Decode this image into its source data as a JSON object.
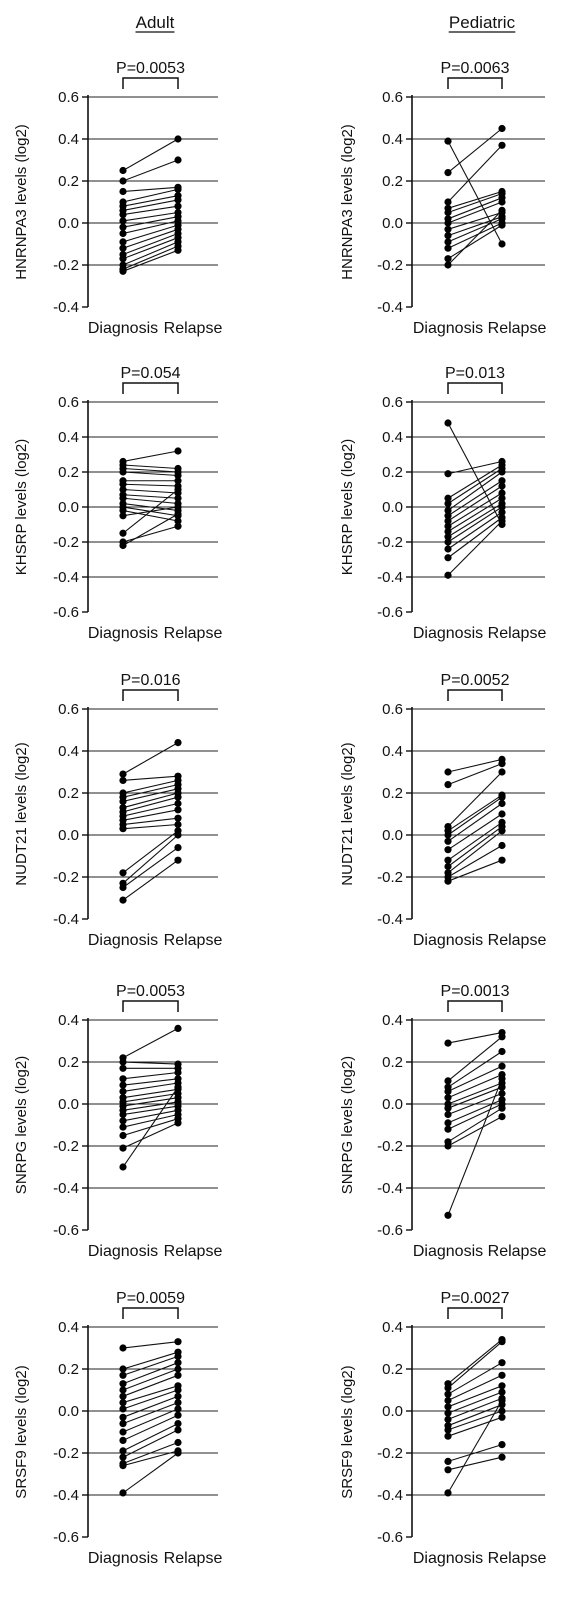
{
  "headers": {
    "left": "Adult",
    "right": "Pediatric"
  },
  "chart_data": [
    {
      "type": "scatter",
      "id": "hnrnpa3-adult",
      "ylabel": "HNRNPA3 levels (log2)",
      "pvalue": "P=0.0053",
      "categories": [
        "Diagnosis",
        "Relapse"
      ],
      "ylim": [
        -0.4,
        0.6
      ],
      "yticks": [
        "-0.4",
        "-0.2",
        "0.0",
        "0.2",
        "0.4",
        "0.6"
      ],
      "grid": true,
      "pairs": [
        [
          0.25,
          0.4
        ],
        [
          0.2,
          0.3
        ],
        [
          0.15,
          0.17
        ],
        [
          0.1,
          0.16
        ],
        [
          0.08,
          0.13
        ],
        [
          0.06,
          0.11
        ],
        [
          0.04,
          0.08
        ],
        [
          0.01,
          0.05
        ],
        [
          -0.02,
          0.03
        ],
        [
          -0.05,
          0.01
        ],
        [
          -0.09,
          -0.01
        ],
        [
          -0.12,
          -0.03
        ],
        [
          -0.15,
          -0.05
        ],
        [
          -0.17,
          -0.07
        ],
        [
          -0.2,
          -0.09
        ],
        [
          -0.22,
          -0.11
        ],
        [
          -0.23,
          -0.13
        ]
      ]
    },
    {
      "type": "scatter",
      "id": "hnrnpa3-pediatric",
      "ylabel": "HNRNPA3 levels (log2)",
      "pvalue": "P=0.0063",
      "categories": [
        "Diagnosis",
        "Relapse"
      ],
      "ylim": [
        -0.4,
        0.6
      ],
      "yticks": [
        "-0.4",
        "-0.2",
        "0.0",
        "0.2",
        "0.4",
        "0.6"
      ],
      "grid": true,
      "pairs": [
        [
          0.39,
          -0.1
        ],
        [
          0.24,
          0.45
        ],
        [
          0.1,
          0.37
        ],
        [
          0.07,
          0.15
        ],
        [
          0.05,
          0.14
        ],
        [
          0.02,
          0.12
        ],
        [
          0.0,
          0.1
        ],
        [
          -0.03,
          0.05
        ],
        [
          -0.06,
          0.03
        ],
        [
          -0.09,
          0.02
        ],
        [
          -0.12,
          0.0
        ],
        [
          -0.17,
          -0.01
        ],
        [
          -0.2,
          0.06
        ]
      ]
    },
    {
      "type": "scatter",
      "id": "khsrp-adult",
      "ylabel": "KHSRP levels (log2)",
      "pvalue": "P=0.054",
      "categories": [
        "Diagnosis",
        "Relapse"
      ],
      "ylim": [
        -0.6,
        0.6
      ],
      "yticks": [
        "-0.6",
        "-0.4",
        "-0.2",
        "0.0",
        "0.2",
        "0.4",
        "0.6"
      ],
      "grid": true,
      "pairs": [
        [
          0.26,
          0.32
        ],
        [
          0.24,
          0.22
        ],
        [
          0.22,
          0.2
        ],
        [
          0.2,
          0.18
        ],
        [
          0.15,
          0.15
        ],
        [
          0.13,
          0.12
        ],
        [
          0.1,
          0.08
        ],
        [
          0.07,
          0.05
        ],
        [
          0.05,
          0.02
        ],
        [
          0.02,
          -0.02
        ],
        [
          0.0,
          -0.05
        ],
        [
          -0.02,
          -0.08
        ],
        [
          -0.05,
          0.0
        ],
        [
          -0.15,
          0.1
        ],
        [
          -0.2,
          -0.11
        ],
        [
          -0.22,
          -0.04
        ]
      ]
    },
    {
      "type": "scatter",
      "id": "khsrp-pediatric",
      "ylabel": "KHSRP levels (log2)",
      "pvalue": "P=0.013",
      "categories": [
        "Diagnosis",
        "Relapse"
      ],
      "ylim": [
        -0.6,
        0.6
      ],
      "yticks": [
        "-0.6",
        "-0.4",
        "-0.2",
        "0.0",
        "0.2",
        "0.4",
        "0.6"
      ],
      "grid": true,
      "pairs": [
        [
          0.48,
          -0.1
        ],
        [
          0.19,
          0.26
        ],
        [
          0.05,
          0.24
        ],
        [
          0.02,
          0.22
        ],
        [
          -0.02,
          0.2
        ],
        [
          -0.05,
          0.15
        ],
        [
          -0.08,
          0.12
        ],
        [
          -0.11,
          0.08
        ],
        [
          -0.14,
          0.05
        ],
        [
          -0.17,
          0.02
        ],
        [
          -0.2,
          0.0
        ],
        [
          -0.24,
          -0.03
        ],
        [
          -0.29,
          -0.06
        ],
        [
          -0.39,
          -0.08
        ]
      ]
    },
    {
      "type": "scatter",
      "id": "nudt21-adult",
      "ylabel": "NUDT21 levels (log2)",
      "pvalue": "P=0.016",
      "categories": [
        "Diagnosis",
        "Relapse"
      ],
      "ylim": [
        -0.4,
        0.6
      ],
      "yticks": [
        "-0.4",
        "-0.2",
        "0.0",
        "0.2",
        "0.4",
        "0.6"
      ],
      "grid": true,
      "pairs": [
        [
          0.29,
          0.44
        ],
        [
          0.26,
          0.28
        ],
        [
          0.2,
          0.26
        ],
        [
          0.18,
          0.24
        ],
        [
          0.16,
          0.22
        ],
        [
          0.13,
          0.2
        ],
        [
          0.11,
          0.18
        ],
        [
          0.09,
          0.15
        ],
        [
          0.07,
          0.12
        ],
        [
          0.05,
          0.08
        ],
        [
          0.03,
          0.05
        ],
        [
          -0.18,
          0.02
        ],
        [
          -0.23,
          0.0
        ],
        [
          -0.25,
          -0.06
        ],
        [
          -0.31,
          -0.12
        ]
      ]
    },
    {
      "type": "scatter",
      "id": "nudt21-pediatric",
      "ylabel": "NUDT21 levels (log2)",
      "pvalue": "P=0.0052",
      "categories": [
        "Diagnosis",
        "Relapse"
      ],
      "ylim": [
        -0.4,
        0.6
      ],
      "yticks": [
        "-0.4",
        "-0.2",
        "0.0",
        "0.2",
        "0.4",
        "0.6"
      ],
      "grid": true,
      "pairs": [
        [
          0.3,
          0.36
        ],
        [
          0.24,
          0.34
        ],
        [
          0.04,
          0.3
        ],
        [
          0.02,
          0.19
        ],
        [
          0.0,
          0.18
        ],
        [
          -0.03,
          0.15
        ],
        [
          -0.07,
          0.1
        ],
        [
          -0.12,
          0.06
        ],
        [
          -0.15,
          0.04
        ],
        [
          -0.18,
          0.02
        ],
        [
          -0.2,
          -0.05
        ],
        [
          -0.22,
          -0.12
        ]
      ]
    },
    {
      "type": "scatter",
      "id": "snrpg-adult",
      "ylabel": "SNRPG levels (log2)",
      "pvalue": "P=0.0053",
      "categories": [
        "Diagnosis",
        "Relapse"
      ],
      "ylim": [
        -0.6,
        0.4
      ],
      "yticks": [
        "-0.6",
        "-0.4",
        "-0.2",
        "0.0",
        "0.2",
        "0.4"
      ],
      "grid": true,
      "pairs": [
        [
          0.22,
          0.36
        ],
        [
          0.2,
          0.19
        ],
        [
          0.17,
          0.17
        ],
        [
          0.12,
          0.15
        ],
        [
          0.09,
          0.12
        ],
        [
          0.06,
          0.1
        ],
        [
          0.03,
          0.07
        ],
        [
          0.01,
          0.05
        ],
        [
          -0.01,
          0.03
        ],
        [
          -0.03,
          0.01
        ],
        [
          -0.05,
          -0.01
        ],
        [
          -0.08,
          -0.03
        ],
        [
          -0.11,
          -0.05
        ],
        [
          -0.15,
          -0.07
        ],
        [
          -0.21,
          -0.09
        ],
        [
          -0.3,
          0.08
        ]
      ]
    },
    {
      "type": "scatter",
      "id": "snrpg-pediatric",
      "ylabel": "SNRPG levels (log2)",
      "pvalue": "P=0.0013",
      "categories": [
        "Diagnosis",
        "Relapse"
      ],
      "ylim": [
        -0.6,
        0.4
      ],
      "yticks": [
        "-0.6",
        "-0.4",
        "-0.2",
        "0.0",
        "0.2",
        "0.4"
      ],
      "grid": true,
      "pairs": [
        [
          0.29,
          0.34
        ],
        [
          0.11,
          0.32
        ],
        [
          0.08,
          0.25
        ],
        [
          0.06,
          0.18
        ],
        [
          0.03,
          0.14
        ],
        [
          0.0,
          0.1
        ],
        [
          -0.02,
          0.08
        ],
        [
          -0.05,
          0.05
        ],
        [
          -0.09,
          0.02
        ],
        [
          -0.12,
          0.0
        ],
        [
          -0.18,
          -0.02
        ],
        [
          -0.2,
          -0.06
        ],
        [
          -0.53,
          0.12
        ]
      ]
    },
    {
      "type": "scatter",
      "id": "srsf9-adult",
      "ylabel": "SRSF9 levels (log2)",
      "pvalue": "P=0.0059",
      "categories": [
        "Diagnosis",
        "Relapse"
      ],
      "ylim": [
        -0.6,
        0.4
      ],
      "yticks": [
        "-0.6",
        "-0.4",
        "-0.2",
        "0.0",
        "0.2",
        "0.4"
      ],
      "grid": true,
      "pairs": [
        [
          0.3,
          0.33
        ],
        [
          0.2,
          0.28
        ],
        [
          0.17,
          0.26
        ],
        [
          0.13,
          0.23
        ],
        [
          0.1,
          0.2
        ],
        [
          0.07,
          0.17
        ],
        [
          0.04,
          0.12
        ],
        [
          0.01,
          0.1
        ],
        [
          -0.03,
          0.07
        ],
        [
          -0.06,
          0.04
        ],
        [
          -0.1,
          0.01
        ],
        [
          -0.14,
          -0.02
        ],
        [
          -0.19,
          -0.06
        ],
        [
          -0.22,
          -0.09
        ],
        [
          -0.25,
          -0.15
        ],
        [
          -0.26,
          -0.19
        ],
        [
          -0.39,
          -0.2
        ]
      ]
    },
    {
      "type": "scatter",
      "id": "srsf9-pediatric",
      "ylabel": "SRSF9 levels (log2)",
      "pvalue": "P=0.0027",
      "categories": [
        "Diagnosis",
        "Relapse"
      ],
      "ylim": [
        -0.6,
        0.4
      ],
      "yticks": [
        "-0.6",
        "-0.4",
        "-0.2",
        "0.0",
        "0.2",
        "0.4"
      ],
      "grid": true,
      "pairs": [
        [
          0.13,
          0.34
        ],
        [
          0.11,
          0.33
        ],
        [
          0.08,
          0.23
        ],
        [
          0.05,
          0.17
        ],
        [
          0.02,
          0.12
        ],
        [
          -0.01,
          0.09
        ],
        [
          -0.04,
          0.06
        ],
        [
          -0.07,
          0.03
        ],
        [
          -0.09,
          0.0
        ],
        [
          -0.12,
          -0.03
        ],
        [
          -0.24,
          -0.16
        ],
        [
          -0.28,
          -0.22
        ],
        [
          -0.39,
          0.05
        ]
      ]
    }
  ]
}
